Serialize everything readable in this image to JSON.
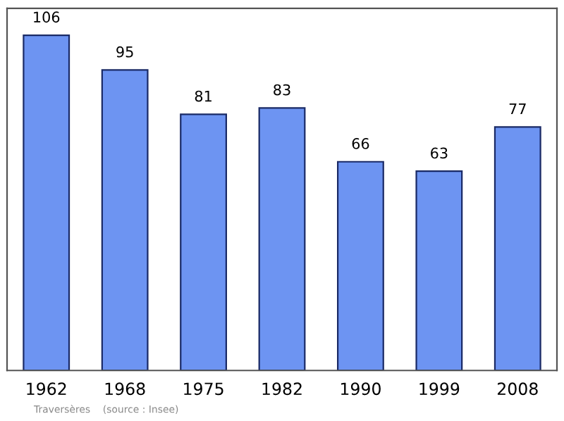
{
  "chart_data": {
    "type": "bar",
    "categories": [
      "1962",
      "1968",
      "1975",
      "1982",
      "1990",
      "1999",
      "2008"
    ],
    "values": [
      106,
      95,
      81,
      83,
      66,
      63,
      77
    ],
    "color": "#6d94f2",
    "data_labels": true,
    "grid": false,
    "legend": false,
    "annotations": [
      "Traversères    (source : Insee)"
    ]
  }
}
